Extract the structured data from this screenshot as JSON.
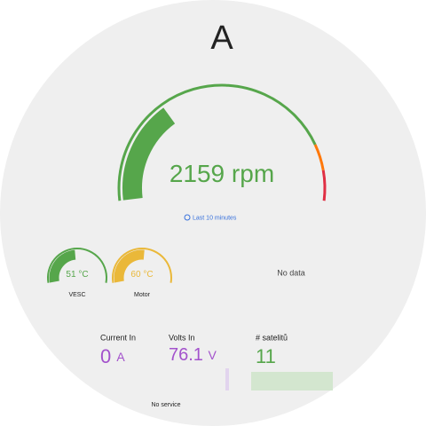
{
  "header": {
    "title": "A"
  },
  "main_gauge": {
    "value": 2159,
    "unit": "rpm",
    "time_range": "Last 10 minutes"
  },
  "small_gauges": [
    {
      "value": 51,
      "unit": "°C",
      "label": "VESC"
    },
    {
      "value": 60,
      "unit": "°C",
      "label": "Motor"
    }
  ],
  "no_data": "No data",
  "stats": [
    {
      "label": "Current In",
      "value": 0,
      "unit": "A"
    },
    {
      "label": "Volts In",
      "value": 76.1,
      "unit": "V"
    },
    {
      "label": "# satelitů",
      "value": 11
    }
  ],
  "footer": "No service"
}
